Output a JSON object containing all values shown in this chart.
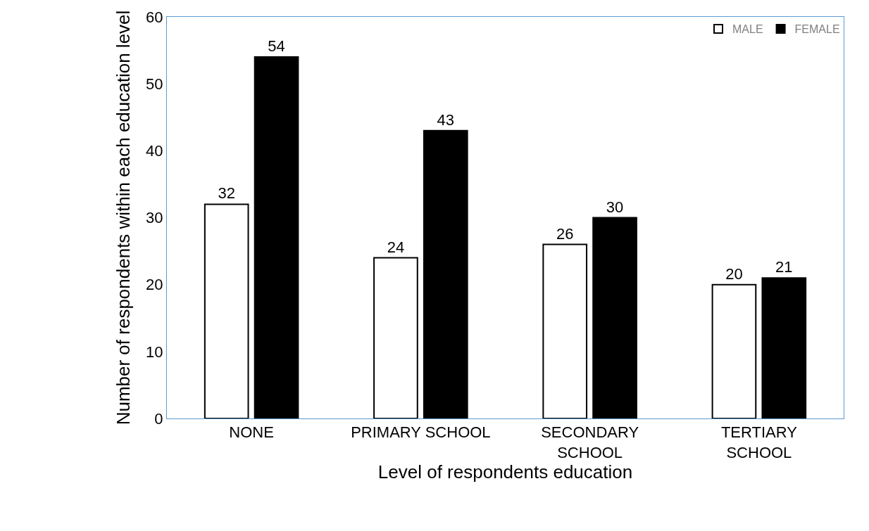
{
  "chart_data": {
    "type": "bar",
    "xlabel": "Level of respondents education",
    "ylabel": "Number of respondents within each education level",
    "categories": [
      "NONE",
      "PRIMARY SCHOOL",
      "SECONDARY\nSCHOOL",
      "TERTIARY\nSCHOOL"
    ],
    "series": [
      {
        "name": "MALE",
        "color": "#ffffff",
        "values": [
          32,
          24,
          26,
          20
        ]
      },
      {
        "name": "FEMALE",
        "color": "#000000",
        "values": [
          54,
          43,
          30,
          21
        ]
      }
    ],
    "ylim": [
      0,
      60
    ],
    "yticks": [
      0,
      10,
      20,
      30,
      40,
      50,
      60
    ],
    "data_labels": true,
    "grid": false,
    "legend": "top right"
  }
}
